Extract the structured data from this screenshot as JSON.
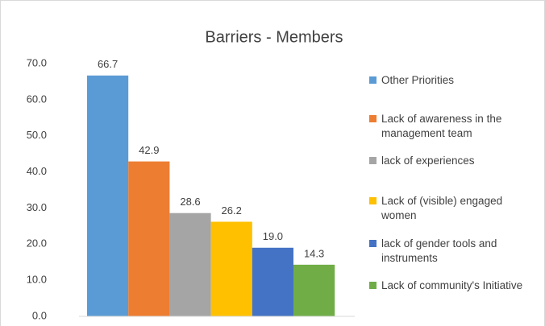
{
  "chart_data": {
    "type": "bar",
    "title": "Barriers - Members",
    "categories": [
      null
    ],
    "series": [
      {
        "name": "Other Priorities",
        "color": "#5b9bd5",
        "values": [
          66.7
        ]
      },
      {
        "name": "Lack of awareness in the management team",
        "color": "#ed7d31",
        "values": [
          42.9
        ]
      },
      {
        "name": "lack of experiences",
        "color": "#a5a5a5",
        "values": [
          28.6
        ]
      },
      {
        "name": "Lack of (visible) engaged women",
        "color": "#ffc000",
        "values": [
          26.2
        ]
      },
      {
        "name": "lack of gender tools and instruments",
        "color": "#4472c4",
        "values": [
          19.0
        ],
        "value_labels": [
          "19.0"
        ]
      },
      {
        "name": "Lack of community's Initiative",
        "color": "#70ad47",
        "values": [
          14.3
        ]
      }
    ],
    "ylim": [
      0,
      70
    ],
    "yticks": [
      {
        "value": 0,
        "label": "0.0"
      },
      {
        "value": 10,
        "label": "10.0"
      },
      {
        "value": 20,
        "label": "20.0"
      },
      {
        "value": 30,
        "label": "30.0"
      },
      {
        "value": 40,
        "label": "40.0"
      },
      {
        "value": 50,
        "label": "50.0"
      },
      {
        "value": 60,
        "label": "60.0"
      },
      {
        "value": 70,
        "label": "70.0"
      }
    ],
    "grid": false,
    "legend": "right"
  }
}
